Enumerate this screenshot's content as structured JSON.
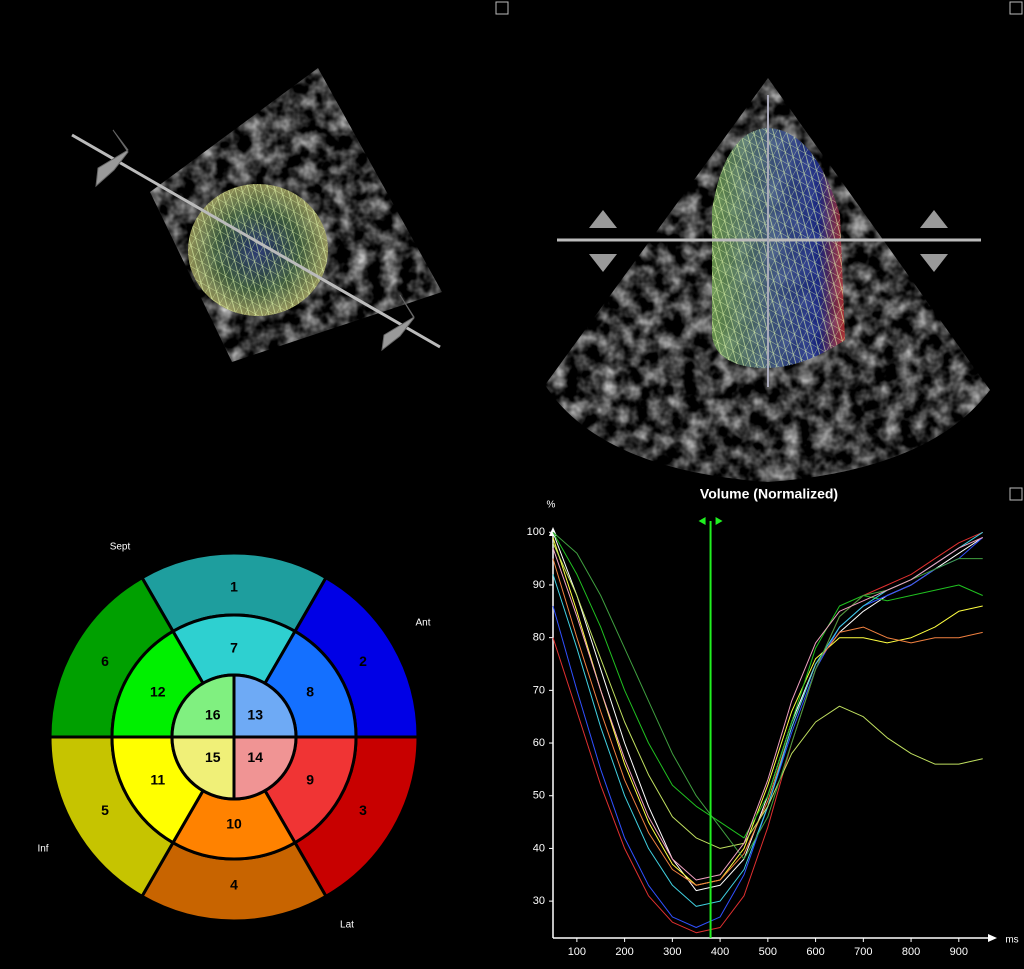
{
  "bullseye": {
    "segments": [
      {
        "label": 1,
        "color": "#1e9e9e"
      },
      {
        "label": 2,
        "color": "#0000e6"
      },
      {
        "label": 3,
        "color": "#c80000"
      },
      {
        "label": 4,
        "color": "#c86400"
      },
      {
        "label": 5,
        "color": "#c6c400"
      },
      {
        "label": 6,
        "color": "#00a000"
      },
      {
        "label": 7,
        "color": "#2ed0d0"
      },
      {
        "label": 8,
        "color": "#1470ff"
      },
      {
        "label": 9,
        "color": "#f03434"
      },
      {
        "label": 10,
        "color": "#ff8200"
      },
      {
        "label": 11,
        "color": "#ffff00"
      },
      {
        "label": 12,
        "color": "#00f000"
      },
      {
        "label": 13,
        "color": "#6eaaf5"
      },
      {
        "label": 14,
        "color": "#f09494"
      },
      {
        "label": 15,
        "color": "#f0f078"
      },
      {
        "label": 16,
        "color": "#80f080"
      }
    ],
    "orientation": [
      "Sept",
      "Ant",
      "Lat",
      "Inf"
    ]
  },
  "chart_data": {
    "type": "line",
    "title": "Volume (Normalized)",
    "y_label": "%",
    "x_label": "ms",
    "x": [
      50,
      100,
      150,
      200,
      250,
      300,
      350,
      400,
      450,
      500,
      550,
      600,
      650,
      700,
      750,
      800,
      850,
      900,
      950
    ],
    "xlim": [
      50,
      980
    ],
    "ylim": [
      23,
      101
    ],
    "xticks": [
      100,
      200,
      300,
      400,
      500,
      600,
      700,
      800,
      900
    ],
    "yticks": [
      30,
      40,
      50,
      60,
      70,
      80,
      90,
      100
    ],
    "cursor": 380,
    "series": [
      {
        "color": "#ffffff",
        "values": [
          100,
          88,
          74,
          60,
          48,
          38,
          32,
          33,
          38,
          50,
          64,
          75,
          81,
          85,
          88,
          90,
          93,
          96,
          99
        ]
      },
      {
        "color": "#ffff40",
        "values": [
          99,
          85,
          70,
          56,
          45,
          37,
          33,
          34,
          40,
          52,
          66,
          76,
          80,
          80,
          79,
          80,
          82,
          85,
          86
        ]
      },
      {
        "color": "#20c020",
        "values": [
          100,
          92,
          82,
          70,
          60,
          52,
          48,
          45,
          42,
          50,
          64,
          78,
          86,
          88,
          87,
          88,
          89,
          90,
          88
        ]
      },
      {
        "color": "#3050ff",
        "values": [
          86,
          70,
          55,
          42,
          33,
          27,
          25,
          27,
          35,
          48,
          62,
          74,
          82,
          86,
          88,
          90,
          93,
          95,
          99
        ]
      },
      {
        "color": "#e03030",
        "values": [
          80,
          66,
          52,
          40,
          31,
          26,
          24,
          25,
          31,
          44,
          60,
          74,
          84,
          88,
          90,
          92,
          95,
          98,
          100
        ]
      },
      {
        "color": "#f08040",
        "values": [
          95,
          80,
          66,
          53,
          43,
          36,
          33,
          34,
          39,
          49,
          63,
          75,
          81,
          82,
          80,
          79,
          80,
          80,
          81
        ]
      },
      {
        "color": "#40d0e0",
        "values": [
          92,
          78,
          63,
          50,
          40,
          33,
          29,
          30,
          36,
          48,
          63,
          75,
          82,
          86,
          89,
          91,
          94,
          97,
          100
        ]
      },
      {
        "color": "#c0e060",
        "values": [
          98,
          88,
          76,
          64,
          54,
          46,
          42,
          40,
          41,
          48,
          58,
          64,
          67,
          65,
          61,
          58,
          56,
          56,
          57
        ]
      },
      {
        "color": "#40a040",
        "values": [
          100,
          96,
          88,
          78,
          68,
          58,
          50,
          44,
          38,
          46,
          60,
          74,
          84,
          88,
          89,
          91,
          93,
          95,
          95
        ]
      },
      {
        "color": "#f0a0c0",
        "values": [
          97,
          84,
          70,
          57,
          46,
          38,
          34,
          35,
          41,
          53,
          68,
          79,
          85,
          87,
          89,
          91,
          94,
          97,
          99
        ]
      }
    ]
  }
}
